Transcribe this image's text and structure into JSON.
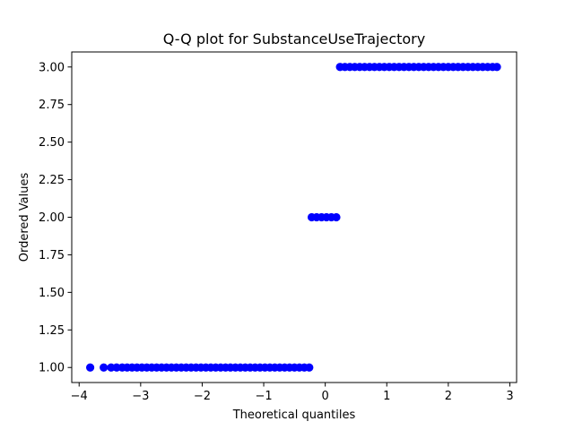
{
  "chart_data": {
    "type": "scatter",
    "title": "Q-Q plot for SubstanceUseTrajectory",
    "xlabel": "Theoretical quantiles",
    "ylabel": "Ordered Values",
    "xlim": [
      -4.12,
      3.11
    ],
    "ylim": [
      0.9,
      3.1
    ],
    "grid": false,
    "marker_color": "#0000ff",
    "x_ticks": [
      -4,
      -3,
      -2,
      -1,
      0,
      1,
      2,
      3
    ],
    "x_tick_labels": [
      "−4",
      "−3",
      "−2",
      "−1",
      "0",
      "1",
      "2",
      "3"
    ],
    "y_ticks": [
      1.0,
      1.25,
      1.5,
      1.75,
      2.0,
      2.25,
      2.5,
      2.75,
      3.0
    ],
    "y_tick_labels": [
      "1.00",
      "1.25",
      "1.50",
      "1.75",
      "2.00",
      "2.25",
      "2.50",
      "2.75",
      "3.00"
    ],
    "series": [
      {
        "x": [
          -3.82,
          -3.6,
          -3.48,
          -3.39,
          -3.3,
          -3.22,
          -3.14,
          -3.06,
          -2.98,
          -2.9,
          -2.82,
          -2.74,
          -2.66,
          -2.58,
          -2.5,
          -2.42,
          -2.34,
          -2.26,
          -2.18,
          -2.1,
          -2.02,
          -1.94,
          -1.86,
          -1.78,
          -1.7,
          -1.62,
          -1.54,
          -1.46,
          -1.38,
          -1.3,
          -1.22,
          -1.14,
          -1.06,
          -0.98,
          -0.9,
          -0.82,
          -0.74,
          -0.66,
          -0.58,
          -0.5,
          -0.42,
          -0.34,
          -0.26,
          -0.22,
          -0.14,
          -0.06,
          0.02,
          0.1,
          0.18,
          0.24,
          0.32,
          0.4,
          0.48,
          0.56,
          0.64,
          0.72,
          0.8,
          0.88,
          0.96,
          1.04,
          1.12,
          1.2,
          1.28,
          1.36,
          1.44,
          1.52,
          1.6,
          1.68,
          1.76,
          1.84,
          1.92,
          2.0,
          2.08,
          2.16,
          2.24,
          2.32,
          2.4,
          2.48,
          2.56,
          2.64,
          2.72,
          2.79
        ],
        "y": [
          1,
          1,
          1,
          1,
          1,
          1,
          1,
          1,
          1,
          1,
          1,
          1,
          1,
          1,
          1,
          1,
          1,
          1,
          1,
          1,
          1,
          1,
          1,
          1,
          1,
          1,
          1,
          1,
          1,
          1,
          1,
          1,
          1,
          1,
          1,
          1,
          1,
          1,
          1,
          1,
          1,
          1,
          1,
          2,
          2,
          2,
          2,
          2,
          2,
          3,
          3,
          3,
          3,
          3,
          3,
          3,
          3,
          3,
          3,
          3,
          3,
          3,
          3,
          3,
          3,
          3,
          3,
          3,
          3,
          3,
          3,
          3,
          3,
          3,
          3,
          3,
          3,
          3,
          3,
          3,
          3,
          3
        ]
      }
    ]
  }
}
